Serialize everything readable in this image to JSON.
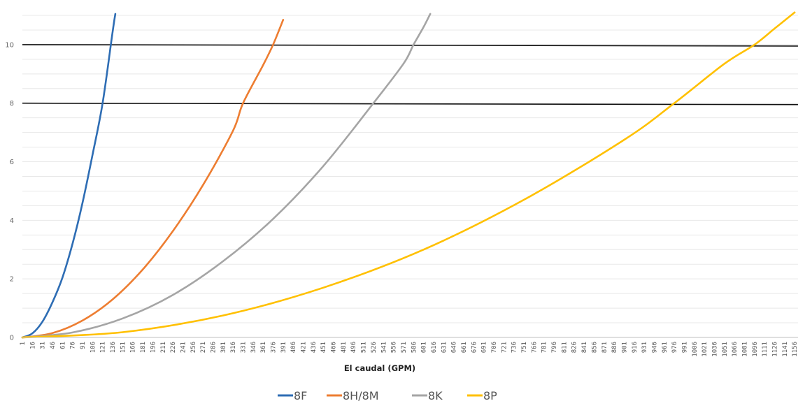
{
  "chart_data": {
    "type": "line",
    "title": "",
    "xlabel": "El caudal (GPM)",
    "ylabel": "",
    "xlim": [
      1,
      1156
    ],
    "ylim": [
      0,
      11
    ],
    "grid": true,
    "legend_position": "bottom",
    "x_tick_labels": [
      "1",
      "16",
      "31",
      "46",
      "61",
      "76",
      "91",
      "106",
      "121",
      "136",
      "151",
      "166",
      "181",
      "196",
      "211",
      "226",
      "241",
      "256",
      "271",
      "286",
      "301",
      "316",
      "331",
      "346",
      "361",
      "376",
      "391",
      "406",
      "421",
      "436",
      "451",
      "466",
      "481",
      "496",
      "511",
      "526",
      "541",
      "556",
      "571",
      "586",
      "601",
      "616",
      "631",
      "646",
      "661",
      "676",
      "691",
      "706",
      "721",
      "736",
      "751",
      "766",
      "781",
      "796",
      "811",
      "826",
      "841",
      "856",
      "871",
      "886",
      "901",
      "916",
      "931",
      "946",
      "961",
      "976",
      "991",
      "1006",
      "1021",
      "1036",
      "1051",
      "1066",
      "1081",
      "1096",
      "1111",
      "1126",
      "1141",
      "1156"
    ],
    "y_tick_labels": [
      "0",
      "2",
      "4",
      "6",
      "8",
      "10"
    ],
    "y_ticks": [
      0,
      2,
      4,
      6,
      8,
      10
    ],
    "reference_lines": [
      10,
      8
    ],
    "series": [
      {
        "name": "8F",
        "color": "#2E6DB4",
        "x": [
          1,
          16,
          31,
          46,
          61,
          76,
          91,
          106,
          121,
          136,
          140
        ],
        "y": [
          0.0,
          0.14,
          0.54,
          1.2,
          2.05,
          3.2,
          4.6,
          6.25,
          8.0,
          10.45,
          11.05
        ]
      },
      {
        "name": "8H/8M",
        "color": "#ED7D31",
        "x": [
          1,
          46,
          91,
          136,
          181,
          226,
          271,
          316,
          331,
          361,
          376,
          391
        ],
        "y": [
          0.0,
          0.15,
          0.58,
          1.3,
          2.32,
          3.63,
          5.2,
          7.06,
          8.0,
          9.3,
          10.0,
          10.85
        ]
      },
      {
        "name": "8K",
        "color": "#A5A5A5",
        "x": [
          1,
          76,
          151,
          226,
          301,
          376,
          451,
          526,
          571,
          586,
          601,
          611
        ],
        "y": [
          0.0,
          0.17,
          0.65,
          1.45,
          2.6,
          4.05,
          5.85,
          8.0,
          9.35,
          10.0,
          10.6,
          11.05
        ]
      },
      {
        "name": "8P",
        "color": "#FFC000",
        "x": [
          1,
          151,
          301,
          451,
          601,
          751,
          901,
          976,
          1051,
          1096,
          1126,
          1156
        ],
        "y": [
          0.0,
          0.18,
          0.75,
          1.7,
          3.0,
          4.7,
          6.75,
          8.0,
          9.35,
          10.0,
          10.55,
          11.1
        ]
      }
    ]
  }
}
